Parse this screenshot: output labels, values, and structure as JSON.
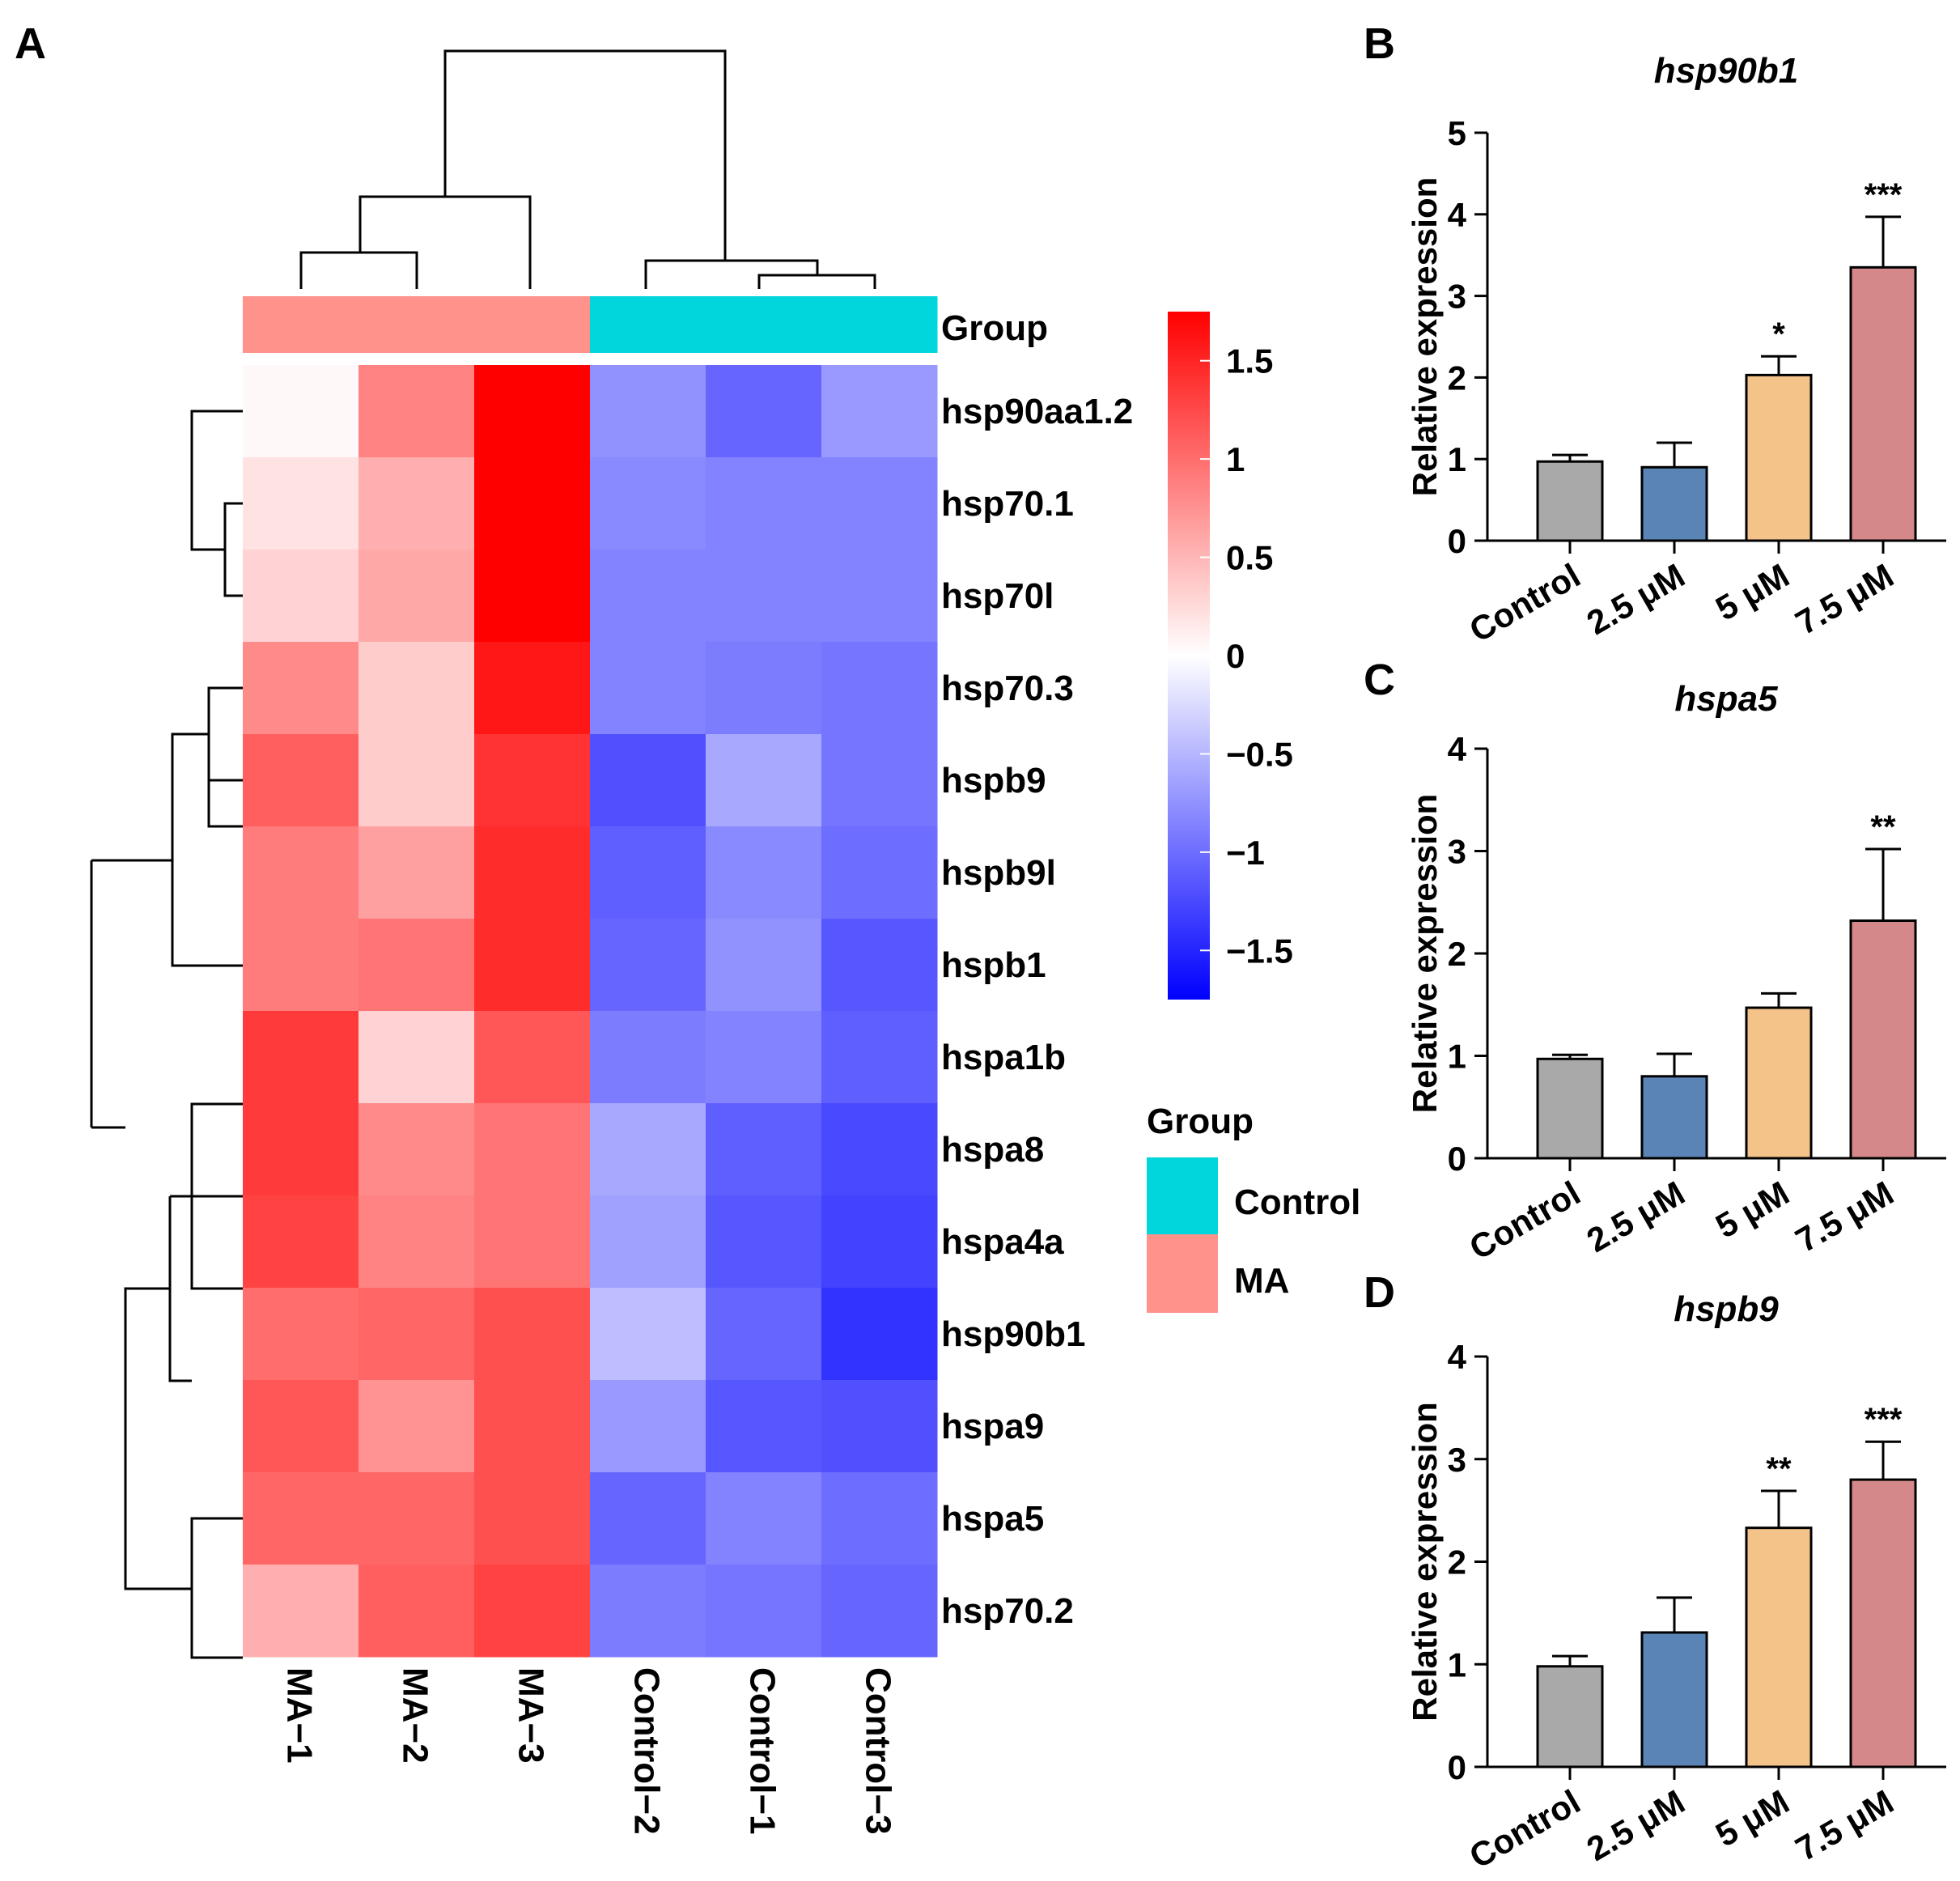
{
  "panel_labels": {
    "A": "A",
    "B": "B",
    "C": "C",
    "D": "D"
  },
  "colors": {
    "control_group": "#00d6dc",
    "ma_group": "#ff928b",
    "heat_low": "#0000ff",
    "heat_mid": "#ffffff",
    "heat_high": "#ff0000",
    "bar_control": "#a9a9a9",
    "bar_2_5": "#5b84b6",
    "bar_5": "#f3c38a",
    "bar_7_5": "#d5888a"
  },
  "chart_data": [
    {
      "type": "heatmap",
      "panel": "A",
      "columns": [
        "MA−1",
        "MA−2",
        "MA−3",
        "Control−2",
        "Control−1",
        "Control−3"
      ],
      "column_groups": [
        "MA",
        "MA",
        "MA",
        "Control",
        "Control",
        "Control"
      ],
      "rows": [
        "hsp90aa1.2",
        "hsp70.1",
        "hsp70l",
        "hsp70.3",
        "hspb9",
        "hspb9l",
        "hspb1",
        "hspa1b",
        "hspa8",
        "hspa4a",
        "hsp90b1",
        "hspa9",
        "hspa5",
        "hsp70.2"
      ],
      "values": [
        [
          0.05,
          0.85,
          1.75,
          -0.75,
          -1.05,
          -0.7
        ],
        [
          0.2,
          0.55,
          1.75,
          -0.8,
          -0.85,
          -0.85
        ],
        [
          0.3,
          0.6,
          1.75,
          -0.85,
          -0.85,
          -0.85
        ],
        [
          0.8,
          0.35,
          1.6,
          -0.85,
          -0.9,
          -0.95
        ],
        [
          1.1,
          0.35,
          1.4,
          -1.2,
          -0.6,
          -0.95
        ],
        [
          0.9,
          0.65,
          1.45,
          -1.1,
          -0.8,
          -1.0
        ],
        [
          0.9,
          0.95,
          1.45,
          -1.05,
          -0.75,
          -1.15
        ],
        [
          1.35,
          0.3,
          1.15,
          -0.9,
          -0.85,
          -1.1
        ],
        [
          1.35,
          0.8,
          0.95,
          -0.6,
          -1.1,
          -1.25
        ],
        [
          1.3,
          0.85,
          0.95,
          -0.65,
          -1.15,
          -1.3
        ],
        [
          1.0,
          1.05,
          1.2,
          -0.45,
          -1.05,
          -1.4
        ],
        [
          1.15,
          0.75,
          1.2,
          -0.7,
          -1.15,
          -1.2
        ],
        [
          1.05,
          1.05,
          1.2,
          -1.05,
          -0.85,
          -1.0
        ],
        [
          0.55,
          1.1,
          1.3,
          -0.9,
          -0.95,
          -1.05
        ]
      ],
      "color_scale": {
        "min": -1.75,
        "max": 1.75,
        "ticks": [
          1.5,
          1,
          0.5,
          0,
          -0.5,
          -1,
          -1.5
        ],
        "tick_labels": [
          "1.5",
          "1",
          "0.5",
          "0",
          "−0.5",
          "−1",
          "−1.5"
        ]
      },
      "annotation_label": "Group",
      "legend": {
        "title": "Group",
        "entries": [
          "Control",
          "MA"
        ]
      }
    },
    {
      "type": "bar",
      "panel": "B",
      "title": "hsp90b1",
      "ylabel": "Relative expression",
      "categories": [
        "Control",
        "2.5 μM",
        "5 μM",
        "7.5 μM"
      ],
      "values": [
        0.97,
        0.9,
        2.03,
        3.35
      ],
      "errors": [
        0.08,
        0.3,
        0.23,
        0.62
      ],
      "significance": [
        "",
        "",
        "*",
        "***"
      ],
      "ylim": [
        0,
        5
      ],
      "yticks": [
        0,
        1,
        2,
        3,
        4,
        5
      ]
    },
    {
      "type": "bar",
      "panel": "C",
      "title": "hspa5",
      "ylabel": "Relative expression",
      "categories": [
        "Control",
        "2.5 μM",
        "5 μM",
        "7.5 μM"
      ],
      "values": [
        0.97,
        0.8,
        1.47,
        2.32
      ],
      "errors": [
        0.04,
        0.22,
        0.14,
        0.7
      ],
      "significance": [
        "",
        "",
        "",
        "**"
      ],
      "ylim": [
        0,
        4
      ],
      "yticks": [
        0,
        1,
        2,
        3,
        4
      ]
    },
    {
      "type": "bar",
      "panel": "D",
      "title": "hspb9",
      "ylabel": "Relative expression",
      "categories": [
        "Control",
        "2.5 μM",
        "5 μM",
        "7.5 μM"
      ],
      "values": [
        0.98,
        1.31,
        2.33,
        2.8
      ],
      "errors": [
        0.1,
        0.34,
        0.36,
        0.37
      ],
      "significance": [
        "",
        "",
        "**",
        "***"
      ],
      "ylim": [
        0,
        4
      ],
      "yticks": [
        0,
        1,
        2,
        3,
        4
      ]
    }
  ]
}
